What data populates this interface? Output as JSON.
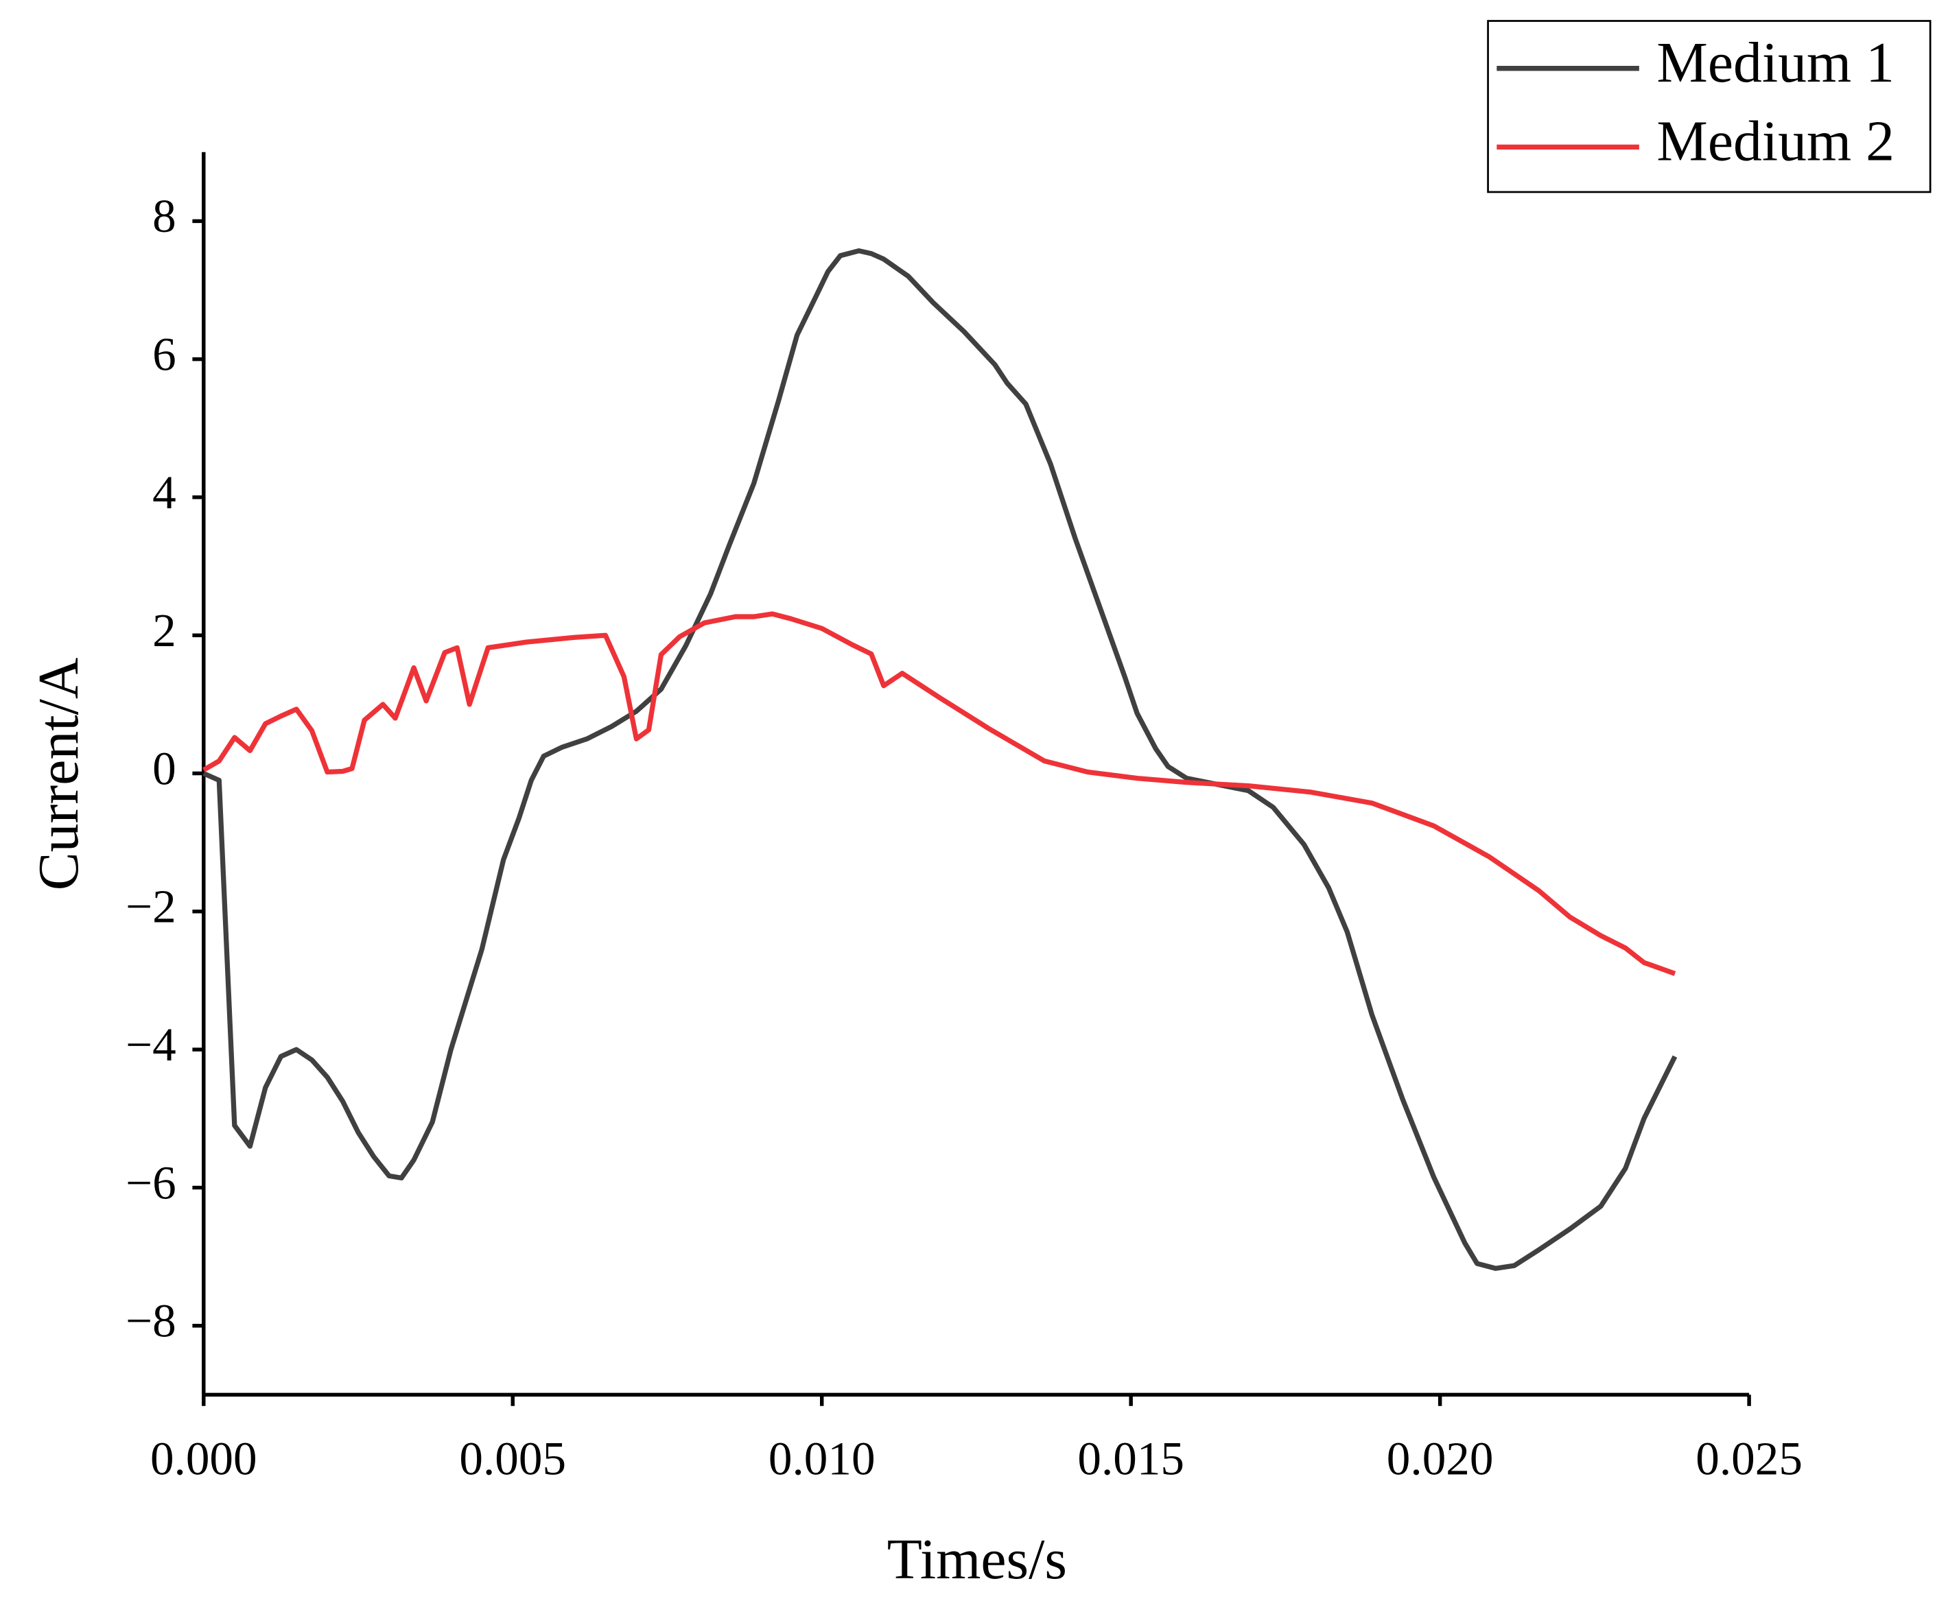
{
  "chart_data": {
    "type": "line",
    "x_label": "Times/s",
    "y_label": "Current/A",
    "xlim": [
      0,
      0.025
    ],
    "ylim": [
      -9,
      9
    ],
    "xticks": [
      {
        "value": 0,
        "label": "0.000"
      },
      {
        "value": 0.005,
        "label": "0.005"
      },
      {
        "value": 0.01,
        "label": "0.010"
      },
      {
        "value": 0.015,
        "label": "0.015"
      },
      {
        "value": 0.02,
        "label": "0.020"
      },
      {
        "value": 0.025,
        "label": "0.025"
      }
    ],
    "yticks": [
      {
        "value": -8,
        "label": "−8"
      },
      {
        "value": -6,
        "label": "−6"
      },
      {
        "value": -4,
        "label": "−4"
      },
      {
        "value": -2,
        "label": "−2"
      },
      0,
      2,
      4,
      6,
      8
    ],
    "legend": "upper-right",
    "series": [
      {
        "name": "Medium 1",
        "color": "#404040",
        "x": [
          0,
          0.00025,
          0.0005,
          0.00075,
          0.001,
          0.00125,
          0.0015,
          0.00175,
          0.002,
          0.00225,
          0.0025,
          0.00275,
          0.003,
          0.0032,
          0.0034,
          0.0037,
          0.004,
          0.0045,
          0.00485,
          0.0051,
          0.0053,
          0.0055,
          0.0058,
          0.0062,
          0.0066,
          0.007,
          0.0074,
          0.0078,
          0.0082,
          0.0085,
          0.0089,
          0.0093,
          0.0096,
          0.0099,
          0.0101,
          0.0103,
          0.0106,
          0.0108,
          0.011,
          0.0114,
          0.0118,
          0.0123,
          0.0128,
          0.013,
          0.0133,
          0.0137,
          0.0141,
          0.0145,
          0.0149,
          0.0151,
          0.0154,
          0.0156,
          0.0159,
          0.0164,
          0.0169,
          0.0173,
          0.0178,
          0.0182,
          0.0185,
          0.0189,
          0.0194,
          0.0199,
          0.0204,
          0.0206,
          0.0209,
          0.0212,
          0.0216,
          0.0221,
          0.0226,
          0.023,
          0.0233,
          0.0238
        ],
        "values": [
          0,
          -0.1,
          -5.1,
          -5.4,
          -4.55,
          -4.1,
          -4.0,
          -4.15,
          -4.4,
          -4.75,
          -5.2,
          -5.55,
          -5.83,
          -5.86,
          -5.6,
          -5.05,
          -4.0,
          -2.55,
          -1.25,
          -0.65,
          -0.1,
          0.25,
          0.38,
          0.5,
          0.68,
          0.9,
          1.22,
          1.85,
          2.6,
          3.3,
          4.2,
          5.4,
          6.35,
          6.9,
          7.27,
          7.5,
          7.57,
          7.53,
          7.45,
          7.2,
          6.82,
          6.4,
          5.92,
          5.65,
          5.35,
          4.48,
          3.4,
          2.4,
          1.4,
          0.87,
          0.36,
          0.1,
          -0.07,
          -0.16,
          -0.25,
          -0.49,
          -1.03,
          -1.66,
          -2.3,
          -3.5,
          -4.73,
          -5.85,
          -6.8,
          -7.1,
          -7.17,
          -7.13,
          -6.9,
          -6.6,
          -6.27,
          -5.72,
          -5.0,
          -4.1
        ]
      },
      {
        "name": "Medium 2",
        "color": "#ee3338",
        "x": [
          0,
          0.00025,
          0.0005,
          0.00075,
          0.001,
          0.00125,
          0.0015,
          0.00175,
          0.002,
          0.00225,
          0.0024,
          0.0026,
          0.0029,
          0.0031,
          0.0034,
          0.0036,
          0.0039,
          0.0041,
          0.0043,
          0.0046,
          0.0052,
          0.006,
          0.0065,
          0.0068,
          0.007,
          0.0072,
          0.0074,
          0.0077,
          0.0081,
          0.0086,
          0.0089,
          0.0092,
          0.0095,
          0.01,
          0.0105,
          0.0108,
          0.011,
          0.0113,
          0.0119,
          0.0127,
          0.0136,
          0.0143,
          0.0151,
          0.0159,
          0.0169,
          0.0179,
          0.0189,
          0.0199,
          0.0208,
          0.0216,
          0.0221,
          0.0226,
          0.023,
          0.0233,
          0.0238
        ],
        "values": [
          0.05,
          0.18,
          0.52,
          0.33,
          0.72,
          0.83,
          0.93,
          0.62,
          0.02,
          0.03,
          0.07,
          0.77,
          1.0,
          0.8,
          1.53,
          1.05,
          1.75,
          1.82,
          1.0,
          1.82,
          1.9,
          1.97,
          2.0,
          1.4,
          0.5,
          0.63,
          1.72,
          1.98,
          2.18,
          2.27,
          2.27,
          2.31,
          2.24,
          2.1,
          1.86,
          1.73,
          1.27,
          1.45,
          1.1,
          0.65,
          0.18,
          0.02,
          -0.07,
          -0.13,
          -0.18,
          -0.27,
          -0.43,
          -0.76,
          -1.21,
          -1.7,
          -2.08,
          -2.35,
          -2.53,
          -2.74,
          -2.9
        ]
      }
    ]
  }
}
